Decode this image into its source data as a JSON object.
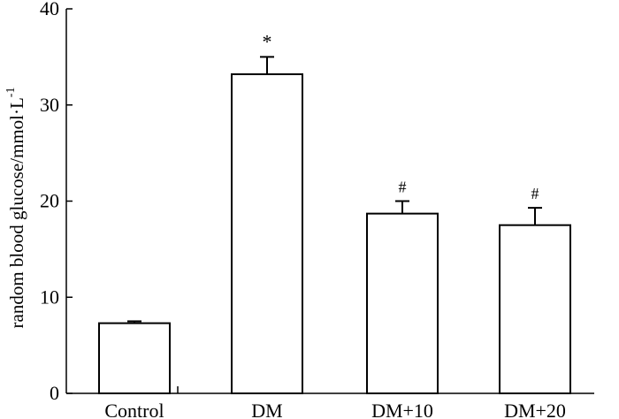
{
  "chart_data": {
    "type": "bar",
    "title": "",
    "xlabel": "",
    "ylabel": "random blood glucose/mmol·L",
    "ylabel_superscript": "-1",
    "ylim": [
      0,
      40
    ],
    "yticks": [
      0,
      10,
      20,
      30,
      40
    ],
    "categories": [
      "Control",
      "DM",
      "DM+10",
      "DM+20"
    ],
    "values": [
      7.3,
      33.2,
      18.7,
      17.5
    ],
    "errors": [
      0.2,
      1.8,
      1.3,
      1.8
    ],
    "annotations": [
      "",
      "*",
      "#",
      "#"
    ],
    "grid": false,
    "legend": "none",
    "bar_fill": "#ffffff",
    "bar_stroke": "#000000"
  }
}
